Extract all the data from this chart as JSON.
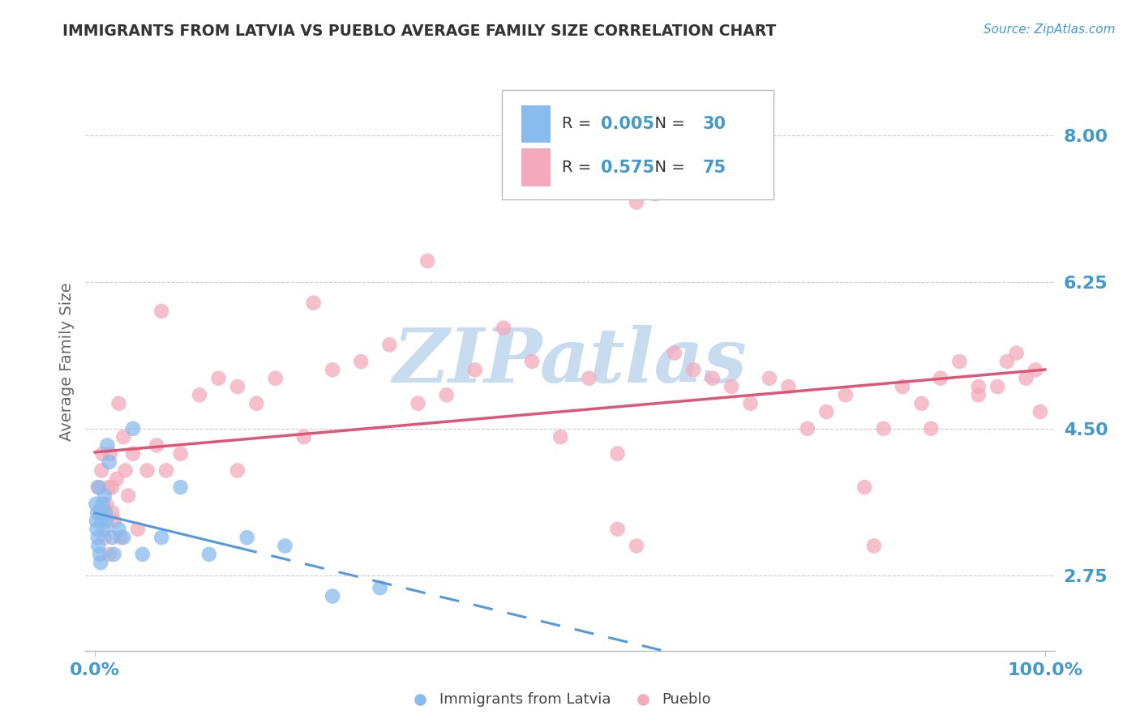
{
  "title": "IMMIGRANTS FROM LATVIA VS PUEBLO AVERAGE FAMILY SIZE CORRELATION CHART",
  "source_text": "Source: ZipAtlas.com",
  "ylabel": "Average Family Size",
  "xlim": [
    -1,
    101
  ],
  "ylim": [
    1.85,
    8.75
  ],
  "yticks": [
    2.75,
    4.5,
    6.25,
    8.0
  ],
  "xtick_positions": [
    0,
    100
  ],
  "xticklabels": [
    "0.0%",
    "100.0%"
  ],
  "yticklabels": [
    "2.75",
    "4.50",
    "6.25",
    "8.00"
  ],
  "legend_labels": [
    "Immigrants from Latvia",
    "Pueblo"
  ],
  "legend_R_vals": [
    "0.005",
    "0.575"
  ],
  "legend_N_vals": [
    "30",
    "75"
  ],
  "blue_color": "#88BBEE",
  "pink_color": "#F4AABB",
  "blue_line_color": "#5599DD",
  "pink_line_color": "#DD5577",
  "grid_color": "#CCCCCC",
  "title_color": "#333333",
  "axis_label_color": "#666666",
  "tick_color": "#4499CC",
  "source_color": "#4499CC",
  "watermark_color": "#C8DCF0",
  "blue_scatter_x": [
    0.1,
    0.15,
    0.2,
    0.25,
    0.3,
    0.35,
    0.4,
    0.5,
    0.6,
    0.7,
    0.8,
    0.9,
    1.0,
    1.1,
    1.2,
    1.3,
    1.5,
    1.8,
    2.0,
    2.5,
    3.0,
    4.0,
    5.0,
    7.0,
    9.0,
    12.0,
    16.0,
    20.0,
    25.0,
    30.0
  ],
  "blue_scatter_y": [
    3.6,
    3.4,
    3.3,
    3.5,
    3.2,
    3.1,
    3.8,
    3.0,
    2.9,
    3.4,
    3.6,
    3.3,
    3.7,
    3.5,
    3.4,
    4.3,
    4.1,
    3.2,
    3.0,
    3.3,
    3.2,
    4.5,
    3.0,
    3.2,
    3.8,
    3.0,
    3.2,
    3.1,
    2.5,
    2.6
  ],
  "pink_scatter_x": [
    0.3,
    0.5,
    0.7,
    1.0,
    1.2,
    1.4,
    1.6,
    1.8,
    2.0,
    2.3,
    2.7,
    3.0,
    3.5,
    4.0,
    4.5,
    5.5,
    6.5,
    7.5,
    9.0,
    11.0,
    13.0,
    15.0,
    17.0,
    19.0,
    22.0,
    25.0,
    28.0,
    31.0,
    34.0,
    37.0,
    40.0,
    43.0,
    46.0,
    49.0,
    52.0,
    55.0,
    57.0,
    59.0,
    61.0,
    63.0,
    65.0,
    67.0,
    69.0,
    71.0,
    73.0,
    75.0,
    77.0,
    79.0,
    81.0,
    83.0,
    85.0,
    87.0,
    89.0,
    91.0,
    93.0,
    95.0,
    97.0,
    98.0,
    99.0,
    99.5,
    55.0,
    57.0,
    35.0,
    23.0,
    15.0,
    7.0,
    3.2,
    1.5,
    82.0,
    88.0,
    93.0,
    96.0,
    0.8,
    1.8,
    2.5
  ],
  "pink_scatter_y": [
    3.8,
    3.5,
    4.0,
    3.2,
    3.6,
    3.8,
    4.2,
    3.5,
    3.4,
    3.9,
    3.2,
    4.4,
    3.7,
    4.2,
    3.3,
    4.0,
    4.3,
    4.0,
    4.2,
    4.9,
    5.1,
    5.0,
    4.8,
    5.1,
    4.4,
    5.2,
    5.3,
    5.5,
    4.8,
    4.9,
    5.2,
    5.7,
    5.3,
    4.4,
    5.1,
    4.2,
    7.2,
    7.3,
    5.4,
    5.2,
    5.1,
    5.0,
    4.8,
    5.1,
    5.0,
    4.5,
    4.7,
    4.9,
    3.8,
    4.5,
    5.0,
    4.8,
    5.1,
    5.3,
    4.9,
    5.0,
    5.4,
    5.1,
    5.2,
    4.7,
    3.3,
    3.1,
    6.5,
    6.0,
    4.0,
    5.9,
    4.0,
    3.0,
    3.1,
    4.5,
    5.0,
    5.3,
    4.2,
    3.8,
    4.8
  ]
}
